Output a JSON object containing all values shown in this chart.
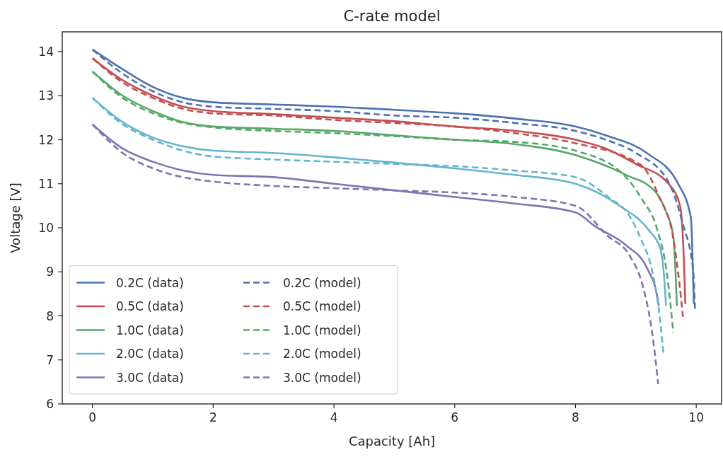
{
  "chart_data": {
    "type": "line",
    "title": "C-rate model",
    "xlabel": "Capacity [Ah]",
    "ylabel": "Voltage [V]",
    "xlim": [
      -0.5,
      10.42
    ],
    "ylim": [
      6,
      14.45
    ],
    "xticks": [
      0,
      2,
      4,
      6,
      8,
      10
    ],
    "yticks": [
      6,
      7,
      8,
      9,
      10,
      11,
      12,
      13,
      14
    ],
    "grid": false,
    "legend": "bottom left",
    "series": [
      {
        "name": "0.2C (data)",
        "color": "#4c72b0",
        "line_style": "solid",
        "x": [
          0,
          0.5,
          1,
          1.5,
          2,
          3,
          4,
          5,
          6,
          7,
          8,
          8.5,
          9.19,
          9.7,
          9.91,
          9.96
        ],
        "values": [
          14.05,
          13.6,
          13.2,
          12.95,
          12.85,
          12.8,
          12.75,
          12.68,
          12.6,
          12.48,
          12.3,
          12.1,
          11.69,
          11.0,
          10.24,
          8.27
        ]
      },
      {
        "name": "0.5C (data)",
        "color": "#c44e52",
        "line_style": "solid",
        "x": [
          0,
          0.5,
          1,
          1.5,
          2,
          3,
          4,
          5,
          6,
          7,
          8,
          8.5,
          9,
          9.54,
          9.73,
          9.78,
          9.82
        ],
        "values": [
          13.85,
          13.35,
          13.0,
          12.75,
          12.65,
          12.58,
          12.5,
          12.42,
          12.3,
          12.2,
          12.0,
          11.8,
          11.45,
          11.0,
          10.51,
          9.76,
          8.27
        ]
      },
      {
        "name": "1.0C (data)",
        "color": "#55a868",
        "line_style": "solid",
        "x": [
          0,
          0.5,
          1,
          1.5,
          2,
          3,
          4,
          5,
          6,
          7,
          8,
          8.84,
          9.31,
          9.49,
          9.62,
          9.68
        ],
        "values": [
          13.55,
          13.0,
          12.65,
          12.4,
          12.3,
          12.25,
          12.2,
          12.1,
          12.0,
          11.9,
          11.65,
          11.2,
          10.84,
          10.4,
          9.82,
          8.22
        ]
      },
      {
        "name": "2.0C (data)",
        "color": "#64b5cd",
        "line_style": "solid",
        "x": [
          0,
          0.5,
          1,
          1.5,
          2,
          3,
          4,
          5,
          6,
          7,
          8,
          8.72,
          9.23,
          9.4,
          9.46,
          9.5
        ],
        "values": [
          12.95,
          12.4,
          12.05,
          11.85,
          11.75,
          11.7,
          11.6,
          11.48,
          11.35,
          11.2,
          11.0,
          10.51,
          9.92,
          9.55,
          9.02,
          8.23
        ]
      },
      {
        "name": "3.0C (data)",
        "color": "#8172b2",
        "line_style": "solid",
        "x": [
          0,
          0.5,
          1,
          1.5,
          2,
          3,
          4,
          5,
          6,
          7,
          8,
          8.33,
          8.84,
          9.19,
          9.35,
          9.38
        ],
        "values": [
          12.35,
          11.8,
          11.5,
          11.3,
          11.2,
          11.15,
          11.0,
          10.85,
          10.7,
          10.55,
          10.35,
          10.03,
          9.6,
          9.07,
          8.47,
          8.23
        ]
      },
      {
        "name": "0.2C (model)",
        "color": "#4c72b0",
        "line_style": "dashed",
        "x": [
          0,
          0.5,
          1,
          1.5,
          2,
          3,
          4,
          5,
          6,
          7,
          8,
          8.5,
          9,
          9.54,
          9.78,
          9.95,
          9.98
        ],
        "values": [
          14.05,
          13.5,
          13.1,
          12.85,
          12.75,
          12.7,
          12.65,
          12.55,
          12.5,
          12.38,
          12.2,
          12.0,
          11.7,
          11.04,
          10.08,
          9.02,
          8.15
        ]
      },
      {
        "name": "0.5C (model)",
        "color": "#c44e52",
        "line_style": "dashed",
        "x": [
          0,
          0.5,
          1,
          1.5,
          2,
          3,
          4,
          5,
          6,
          7,
          8,
          9.08,
          9.38,
          9.62,
          9.72,
          9.78
        ],
        "values": [
          13.85,
          13.3,
          12.95,
          12.7,
          12.6,
          12.55,
          12.45,
          12.38,
          12.3,
          12.15,
          11.92,
          11.43,
          10.72,
          9.76,
          8.75,
          7.98
        ]
      },
      {
        "name": "1.0C (model)",
        "color": "#55a868",
        "line_style": "dashed",
        "x": [
          0,
          0.5,
          1,
          1.5,
          2,
          3,
          4,
          5,
          6,
          7,
          8,
          8.8,
          9.11,
          9.35,
          9.52,
          9.62
        ],
        "values": [
          13.55,
          12.95,
          12.6,
          12.38,
          12.28,
          12.2,
          12.15,
          12.08,
          12.0,
          11.95,
          11.75,
          11.2,
          10.63,
          9.98,
          8.91,
          7.62
        ]
      },
      {
        "name": "2.0C (model)",
        "color": "#64b5cd",
        "line_style": "dashed",
        "x": [
          0,
          0.5,
          1,
          1.5,
          2,
          3,
          4,
          5,
          6,
          7,
          8,
          8.57,
          8.88,
          9.08,
          9.27,
          9.38,
          9.46
        ],
        "values": [
          12.95,
          12.35,
          12.0,
          11.75,
          11.62,
          11.55,
          11.5,
          11.45,
          11.4,
          11.3,
          11.15,
          10.67,
          10.3,
          9.76,
          9.02,
          8.15,
          7.11
        ]
      },
      {
        "name": "3.0C (model)",
        "color": "#8172b2",
        "line_style": "dashed",
        "x": [
          0,
          0.5,
          1,
          1.5,
          2,
          3,
          4,
          5,
          6,
          7,
          8,
          8.53,
          8.91,
          9.11,
          9.27,
          9.37
        ],
        "values": [
          12.35,
          11.7,
          11.35,
          11.15,
          11.05,
          10.95,
          10.9,
          10.85,
          10.8,
          10.7,
          10.5,
          9.82,
          9.34,
          8.7,
          7.62,
          6.45
        ]
      }
    ]
  }
}
